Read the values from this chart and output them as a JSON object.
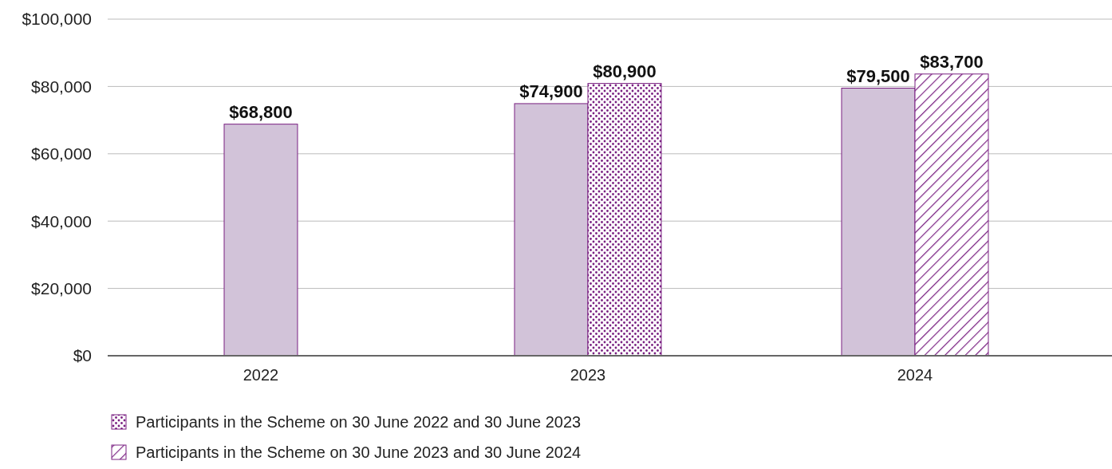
{
  "chart_data": {
    "type": "bar",
    "categories": [
      "2022",
      "2023",
      "2024"
    ],
    "series": [
      {
        "color": "#d2c3d9",
        "values": [
          68800,
          74900,
          79500
        ],
        "value_labels": [
          "$68,800",
          "$74,900",
          "$79,500"
        ]
      },
      {
        "name": "Participants in the Scheme on 30 June 2022 and 30 June 2023",
        "color": "#7a2182",
        "values": [
          null,
          80900,
          null
        ],
        "value_labels": [
          null,
          "$80,900",
          null
        ]
      },
      {
        "name": "Participants in the Scheme on 30 June 2023 and 30 June 2024",
        "color": "#7a2182",
        "values": [
          null,
          null,
          83700
        ],
        "value_labels": [
          null,
          null,
          "$83,700"
        ]
      }
    ],
    "ylim": [
      0,
      100000
    ],
    "yticks": [
      {
        "value": 0,
        "label": "$0"
      },
      {
        "value": 20000,
        "label": "$20,000"
      },
      {
        "value": 40000,
        "label": "$40,000"
      },
      {
        "value": 60000,
        "label": "$60,000"
      },
      {
        "value": 80000,
        "label": "$80,000"
      },
      {
        "value": 100000,
        "label": "$100,000"
      }
    ],
    "grid": "y",
    "legend": "bottom"
  }
}
